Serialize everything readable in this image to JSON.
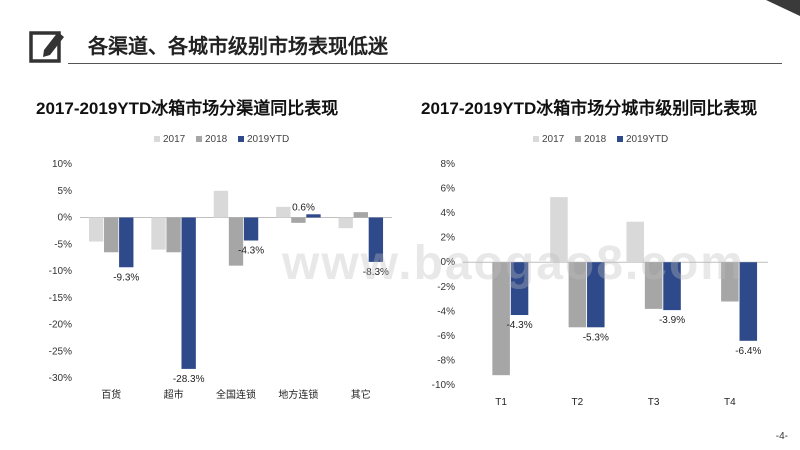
{
  "page": {
    "title": "各渠道、各城市级别市场表现低迷",
    "watermark": "www.baogao8.com",
    "page_number": "-4-",
    "icon": "edit-icon"
  },
  "colors": {
    "s2017": "#d9d9d9",
    "s2018": "#a6a6a6",
    "s2019": "#2f4a8a"
  },
  "chart_data": [
    {
      "type": "bar",
      "title": "2017-2019YTD冰箱市场分渠道同比表现",
      "categories": [
        "百货",
        "超市",
        "全国连锁",
        "地方连锁",
        "其它"
      ],
      "series": [
        {
          "name": "2017",
          "values": [
            -4.5,
            -6.0,
            5.0,
            2.0,
            -2.0
          ]
        },
        {
          "name": "2018",
          "values": [
            -6.5,
            -6.5,
            -9.0,
            -1.0,
            1.0
          ]
        },
        {
          "name": "2019YTD",
          "values": [
            -9.3,
            -28.3,
            -4.3,
            0.6,
            -8.3
          ]
        }
      ],
      "data_labels": [
        "-9.3%",
        "-28.3%",
        "-4.3%",
        "0.6%",
        "-8.3%"
      ],
      "yticks": [
        "10%",
        "5%",
        "0%",
        "-5%",
        "-10%",
        "-15%",
        "-20%",
        "-25%",
        "-30%"
      ],
      "ylim": [
        -30,
        10
      ],
      "xlabel": "",
      "ylabel": ""
    },
    {
      "type": "bar",
      "title": "2017-2019YTD冰箱市场分城市级别同比表现",
      "categories": [
        "T1",
        "T2",
        "T3",
        "T4"
      ],
      "series": [
        {
          "name": "2017",
          "values": [
            0,
            5.3,
            3.3,
            0
          ]
        },
        {
          "name": "2018",
          "values": [
            -9.2,
            -5.3,
            -3.8,
            -3.2
          ]
        },
        {
          "name": "2019YTD",
          "values": [
            -4.3,
            -5.3,
            -3.9,
            -6.4
          ]
        }
      ],
      "data_labels": [
        "-4.3%",
        "-5.3%",
        "-3.9%",
        "-6.4%"
      ],
      "yticks": [
        "8%",
        "6%",
        "4%",
        "2%",
        "0%",
        "-2%",
        "-4%",
        "-6%",
        "-8%",
        "-10%"
      ],
      "ylim": [
        -10,
        8
      ],
      "xlabel": "",
      "ylabel": ""
    }
  ]
}
